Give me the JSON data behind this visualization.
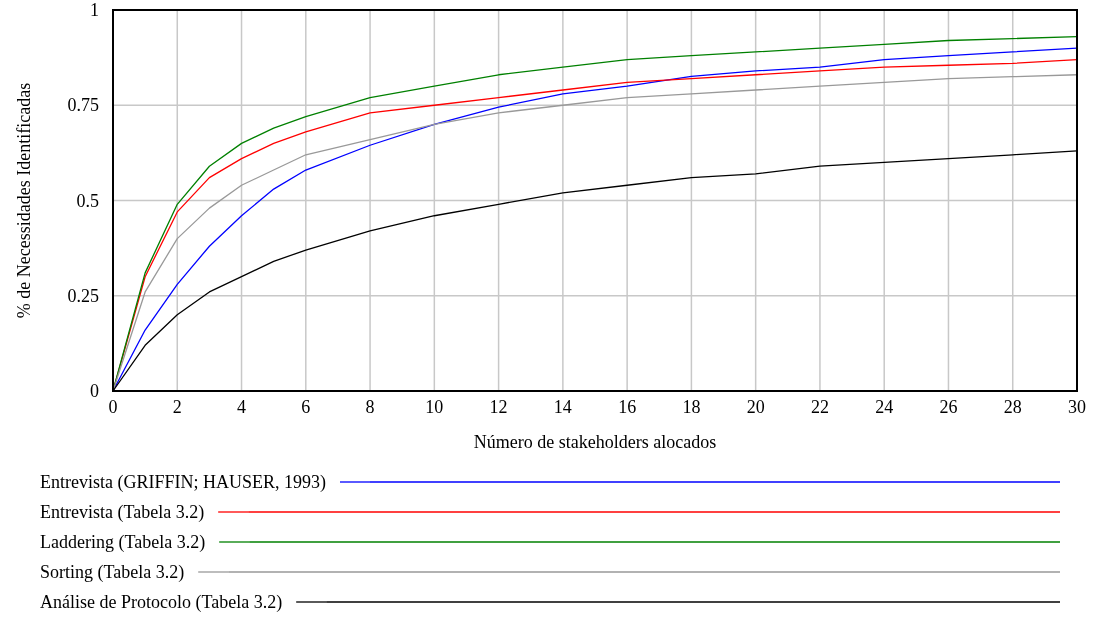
{
  "chart_data": {
    "type": "line",
    "xlabel": "Número de stakeholders alocados",
    "ylabel": "% de Necessidades Identificadas",
    "x": [
      0,
      1,
      2,
      3,
      4,
      5,
      6,
      8,
      10,
      12,
      14,
      16,
      18,
      20,
      22,
      24,
      26,
      28,
      30
    ],
    "xlim": [
      0,
      30
    ],
    "xticks": [
      0,
      2,
      4,
      6,
      8,
      10,
      12,
      14,
      16,
      18,
      20,
      22,
      24,
      26,
      28,
      30
    ],
    "ylim": [
      0,
      1
    ],
    "yticks": [
      0,
      0.25,
      0.5,
      0.75,
      1
    ],
    "grid": true,
    "legend": "bottom",
    "marker": "none",
    "line_style": "solid",
    "series": [
      {
        "name": "Entrevista (GRIFFIN; HAUSER, 1993)",
        "color": "#0000ff",
        "values": [
          0,
          0.16,
          0.28,
          0.38,
          0.46,
          0.53,
          0.58,
          0.645,
          0.7,
          0.745,
          0.78,
          0.8,
          0.826,
          0.84,
          0.85,
          0.87,
          0.88,
          0.89,
          0.9
        ]
      },
      {
        "name": "Entrevista (Tabela 3.2)",
        "color": "#ff0000",
        "values": [
          0,
          0.3,
          0.47,
          0.56,
          0.61,
          0.65,
          0.68,
          0.73,
          0.75,
          0.77,
          0.79,
          0.81,
          0.82,
          0.83,
          0.84,
          0.85,
          0.855,
          0.86,
          0.87
        ]
      },
      {
        "name": "Laddering (Tabela 3.2)",
        "color": "#008000",
        "values": [
          0,
          0.31,
          0.49,
          0.59,
          0.65,
          0.69,
          0.72,
          0.77,
          0.8,
          0.83,
          0.85,
          0.87,
          0.88,
          0.89,
          0.9,
          0.91,
          0.92,
          0.925,
          0.93
        ]
      },
      {
        "name": "Sorting (Tabela 3.2)",
        "color": "#999999",
        "values": [
          0,
          0.26,
          0.4,
          0.48,
          0.54,
          0.58,
          0.62,
          0.66,
          0.7,
          0.73,
          0.75,
          0.77,
          0.78,
          0.79,
          0.8,
          0.81,
          0.82,
          0.825,
          0.83
        ]
      },
      {
        "name": "Análise de Protocolo (Tabela 3.2)",
        "color": "#000000",
        "values": [
          0,
          0.12,
          0.2,
          0.26,
          0.3,
          0.34,
          0.37,
          0.42,
          0.46,
          0.49,
          0.52,
          0.54,
          0.56,
          0.57,
          0.59,
          0.6,
          0.61,
          0.62,
          0.63
        ]
      }
    ]
  }
}
